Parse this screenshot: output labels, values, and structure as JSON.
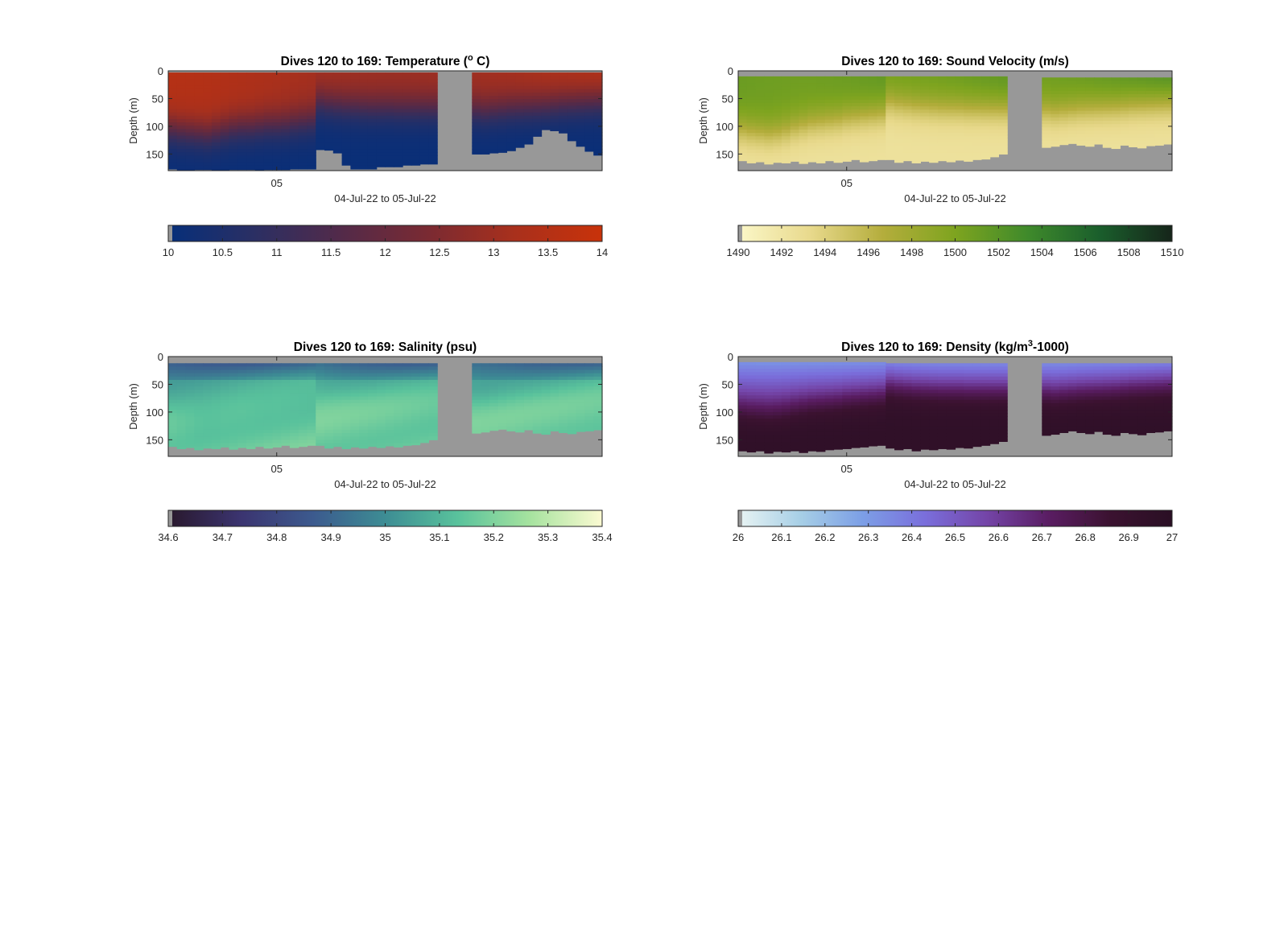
{
  "figure": {
    "background": "#ffffff",
    "no_data_color": "#989898"
  },
  "chart_data": [
    {
      "type": "heatmap",
      "title_parts": [
        "Dives 120 to 169: Temperature (",
        "o",
        " C)"
      ],
      "xlabel": "04-Jul-22 to 05-Jul-22",
      "ylabel": "Depth (m)",
      "x_ticks": [
        "05"
      ],
      "y_ticks": [
        0,
        50,
        100,
        150
      ],
      "ylim": [
        0,
        180
      ],
      "colorbar_range": [
        10,
        14
      ],
      "colorbar_ticks": [
        "10",
        "10.5",
        "11",
        "11.5",
        "12",
        "12.5",
        "13",
        "13.5",
        "14"
      ],
      "colormap": [
        "#062f7a",
        "#2b2f63",
        "#532a49",
        "#7a2a32",
        "#a9301c",
        "#c8320a"
      ],
      "segments": [
        {
          "dives": [
            120,
            136
          ],
          "bottom": [
            177,
            179,
            179,
            178,
            178,
            179,
            179,
            178,
            178,
            178,
            179,
            178,
            178,
            178,
            177,
            177,
            177
          ],
          "top": 3,
          "thermocline": [
            105,
            108,
            110,
            112,
            114,
            110,
            106,
            102,
            100,
            100,
            98,
            96,
            96,
            95,
            92,
            90,
            88
          ],
          "surface_temp": 13.3
        },
        {
          "dives": [
            137,
            150
          ],
          "bottom": [
            142,
            143,
            148,
            170,
            177,
            177,
            177,
            173,
            173,
            173,
            170,
            170,
            168,
            168
          ],
          "top": 3,
          "thermocline": [
            55,
            58,
            60,
            62,
            63,
            64,
            65,
            65,
            65,
            66,
            66,
            66,
            66,
            66
          ],
          "surface_temp": 13.4
        },
        {
          "dives": [
            155,
            169
          ],
          "bottom": [
            150,
            150,
            148,
            147,
            144,
            138,
            132,
            118,
            106,
            108,
            112,
            126,
            136,
            145,
            152
          ],
          "top": 3,
          "thermocline": [
            70,
            72,
            70,
            68,
            66,
            65,
            64,
            63,
            62,
            60,
            58,
            57,
            56,
            55,
            54
          ],
          "surface_temp": 13.6
        }
      ]
    },
    {
      "type": "heatmap",
      "title_parts": [
        "Dives 120 to 169: Sound Velocity (m/s)"
      ],
      "xlabel": "04-Jul-22 to 05-Jul-22",
      "ylabel": "Depth (m)",
      "x_ticks": [
        "05"
      ],
      "y_ticks": [
        0,
        50,
        100,
        150
      ],
      "ylim": [
        0,
        180
      ],
      "colorbar_range": [
        1490,
        1510
      ],
      "colorbar_ticks": [
        "1490",
        "1492",
        "1494",
        "1496",
        "1498",
        "1500",
        "1502",
        "1504",
        "1506",
        "1508",
        "1510"
      ],
      "colormap": [
        "#fbf7c8",
        "#e8d98c",
        "#b4ad3c",
        "#7ea41f",
        "#3f8a2b",
        "#1a5e2c",
        "#16251a"
      ],
      "segments": [
        {
          "dives": [
            120,
            136
          ],
          "bottom": [
            162,
            166,
            164,
            168,
            165,
            166,
            163,
            167,
            164,
            166,
            162,
            165,
            163,
            160,
            164,
            162,
            160
          ],
          "top": 10,
          "thermocline": [
            105,
            108,
            110,
            112,
            110,
            106,
            100,
            96,
            92,
            90,
            88,
            86,
            82,
            80,
            78,
            76,
            74
          ],
          "surface_temp": 13.3
        },
        {
          "dives": [
            137,
            150
          ],
          "bottom": [
            160,
            165,
            162,
            166,
            163,
            165,
            162,
            164,
            161,
            163,
            160,
            159,
            155,
            150
          ],
          "top": 10,
          "thermocline": [
            55,
            58,
            60,
            62,
            63,
            64,
            65,
            65,
            65,
            66,
            66,
            66,
            66,
            66
          ],
          "surface_temp": 13.4
        },
        {
          "dives": [
            155,
            169
          ],
          "bottom": [
            138,
            136,
            133,
            131,
            134,
            136,
            132,
            138,
            140,
            134,
            137,
            139,
            135,
            134,
            132
          ],
          "top": 12,
          "thermocline": [
            70,
            72,
            70,
            68,
            66,
            65,
            64,
            63,
            62,
            60,
            58,
            57,
            56,
            55,
            54
          ],
          "surface_temp": 13.6
        }
      ]
    },
    {
      "type": "heatmap",
      "title_parts": [
        "Dives 120 to 169: Salinity (psu)"
      ],
      "xlabel": "04-Jul-22 to 05-Jul-22",
      "ylabel": "Depth (m)",
      "x_ticks": [
        "05"
      ],
      "y_ticks": [
        0,
        50,
        100,
        150
      ],
      "ylim": [
        0,
        180
      ],
      "colorbar_range": [
        34.6,
        35.4
      ],
      "colorbar_ticks": [
        "34.6",
        "34.7",
        "34.8",
        "34.9",
        "35",
        "35.1",
        "35.2",
        "35.3",
        "35.4"
      ],
      "colormap": [
        "#29182c",
        "#3b3470",
        "#3c5a8e",
        "#3d8d94",
        "#59c29c",
        "#a6e39f",
        "#fbfad2"
      ],
      "segments": [
        {
          "dives": [
            120,
            136
          ],
          "bottom": [
            162,
            166,
            164,
            168,
            165,
            166,
            163,
            167,
            164,
            166,
            162,
            165,
            163,
            160,
            164,
            162,
            160
          ],
          "top": 12,
          "thermocline": [
            105,
            108,
            110,
            112,
            110,
            106,
            100,
            96,
            92,
            90,
            88,
            86,
            82,
            80,
            78,
            76,
            74
          ],
          "surface_temp": 13.3
        },
        {
          "dives": [
            137,
            150
          ],
          "bottom": [
            160,
            165,
            162,
            166,
            163,
            165,
            162,
            164,
            161,
            163,
            160,
            159,
            155,
            150
          ],
          "top": 12,
          "thermocline": [
            55,
            58,
            60,
            62,
            63,
            64,
            65,
            65,
            65,
            66,
            66,
            66,
            66,
            66
          ],
          "surface_temp": 13.4
        },
        {
          "dives": [
            155,
            169
          ],
          "bottom": [
            138,
            136,
            133,
            131,
            134,
            136,
            132,
            138,
            140,
            134,
            137,
            139,
            135,
            134,
            132
          ],
          "top": 12,
          "thermocline": [
            70,
            72,
            70,
            68,
            66,
            65,
            64,
            63,
            62,
            60,
            58,
            57,
            56,
            55,
            54
          ],
          "surface_temp": 13.6
        }
      ]
    },
    {
      "type": "heatmap",
      "title_parts": [
        "Dives 120 to 169: Density (kg/m",
        "3",
        "-1000)"
      ],
      "xlabel": "04-Jul-22 to 05-Jul-22",
      "ylabel": "Depth (m)",
      "x_ticks": [
        "05"
      ],
      "y_ticks": [
        0,
        50,
        100,
        150
      ],
      "ylim": [
        0,
        180
      ],
      "colorbar_range": [
        26,
        27
      ],
      "colorbar_ticks": [
        "26",
        "26.1",
        "26.2",
        "26.3",
        "26.4",
        "26.5",
        "26.6",
        "26.7",
        "26.8",
        "26.9",
        "27"
      ],
      "colormap": [
        "#e9f4f3",
        "#a7cfe6",
        "#7c9fe6",
        "#7a6fdc",
        "#7445a8",
        "#5a1d63",
        "#3b1230",
        "#2a0f24"
      ],
      "segments": [
        {
          "dives": [
            120,
            136
          ],
          "bottom": [
            170,
            172,
            170,
            174,
            171,
            172,
            170,
            173,
            170,
            171,
            168,
            167,
            166,
            164,
            163,
            161,
            160
          ],
          "top": 10,
          "thermocline": [
            105,
            108,
            110,
            112,
            110,
            106,
            100,
            96,
            92,
            90,
            88,
            86,
            82,
            80,
            78,
            76,
            74
          ],
          "surface_temp": 13.3
        },
        {
          "dives": [
            137,
            150
          ],
          "bottom": [
            165,
            168,
            166,
            170,
            167,
            168,
            166,
            167,
            164,
            165,
            162,
            160,
            157,
            153
          ],
          "top": 12,
          "thermocline": [
            55,
            58,
            60,
            62,
            63,
            64,
            65,
            65,
            65,
            66,
            66,
            66,
            66,
            66
          ],
          "surface_temp": 13.4
        },
        {
          "dives": [
            155,
            169
          ],
          "bottom": [
            142,
            140,
            137,
            134,
            137,
            139,
            135,
            140,
            142,
            137,
            139,
            141,
            137,
            136,
            134
          ],
          "top": 12,
          "thermocline": [
            70,
            72,
            70,
            68,
            66,
            65,
            64,
            63,
            62,
            60,
            58,
            57,
            56,
            55,
            54
          ],
          "surface_temp": 13.6
        }
      ]
    }
  ]
}
